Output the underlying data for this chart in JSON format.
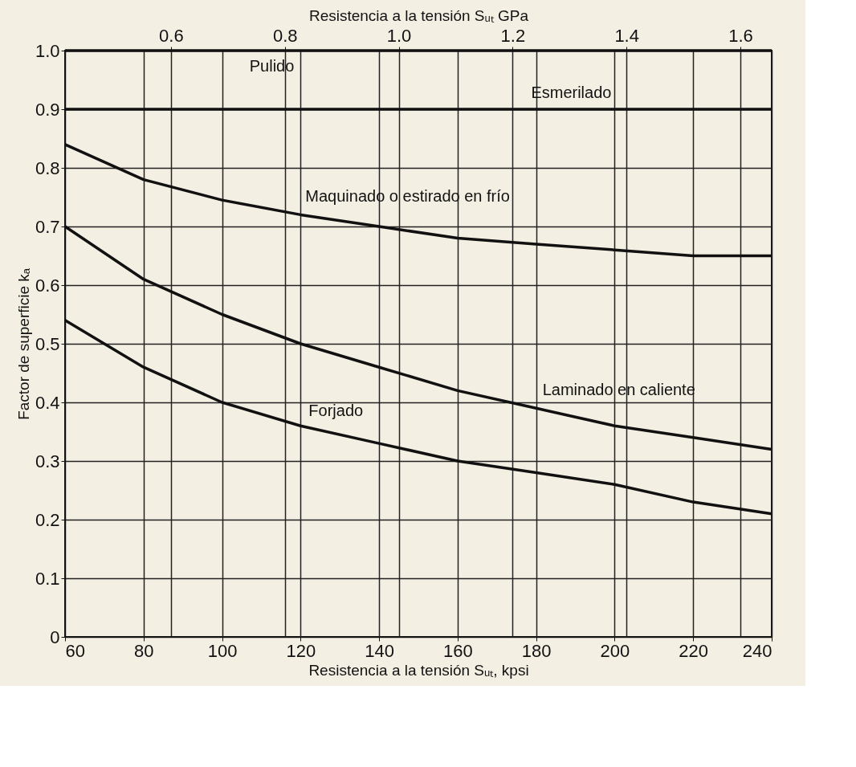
{
  "chart_data": {
    "type": "line",
    "xlabel": "Resistencia a la tensión Sᵤₜ, kpsi",
    "x2label": "Resistencia a la tensión Sᵤₜ GPa",
    "ylabel": "Factor de superficie kₐ",
    "x": [
      60,
      80,
      100,
      120,
      140,
      160,
      180,
      200,
      220,
      240
    ],
    "series": [
      {
        "color": "#111111",
        "values": [
          1.0,
          1.0,
          1.0,
          1.0,
          1.0,
          1.0,
          1.0,
          1.0,
          1.0,
          1.0
        ]
      },
      {
        "color": "#111111",
        "values": [
          0.9,
          0.9,
          0.9,
          0.9,
          0.9,
          0.9,
          0.9,
          0.9,
          0.9,
          0.9
        ]
      },
      {
        "color": "#111111",
        "values": [
          0.84,
          0.78,
          0.745,
          0.72,
          0.7,
          0.68,
          0.67,
          0.66,
          0.65,
          0.65
        ]
      },
      {
        "color": "#111111",
        "values": [
          0.7,
          0.61,
          0.55,
          0.5,
          0.46,
          0.42,
          0.39,
          0.36,
          0.34,
          0.32
        ]
      },
      {
        "color": "#111111",
        "values": [
          0.54,
          0.46,
          0.4,
          0.36,
          0.33,
          0.3,
          0.28,
          0.26,
          0.23,
          0.21
        ]
      }
    ],
    "xlim": [
      60,
      240
    ],
    "xticks": [
      60,
      80,
      100,
      120,
      140,
      160,
      180,
      200,
      220,
      240
    ],
    "x2lim": [
      0.414,
      1.655
    ],
    "x2ticks": [
      0.6,
      0.8,
      {
        "value": 1,
        "label": "1.0"
      },
      1.2,
      1.4,
      1.6
    ],
    "ylim": [
      0,
      1.0
    ],
    "yticks": [
      0,
      0.1,
      0.2,
      0.3,
      0.4,
      0.5,
      0.6,
      0.7,
      0.8,
      0.9,
      {
        "value": 1,
        "label": "1.0"
      }
    ],
    "grid": true,
    "marker": "none",
    "line_style": "solid",
    "legend": false,
    "annotations": [
      {
        "text": "Pulido",
        "x": 120,
        "y": 1.0
      },
      {
        "text": "Esmerilado",
        "x": 200,
        "y": 0.9
      },
      {
        "text": "Maquinado o estirado en frío",
        "x": 120,
        "y": 0.72
      },
      {
        "text": "Laminado en caliente",
        "x": 180,
        "y": 0.39
      },
      {
        "text": "Forjado",
        "x": 120,
        "y": 0.36
      }
    ]
  }
}
